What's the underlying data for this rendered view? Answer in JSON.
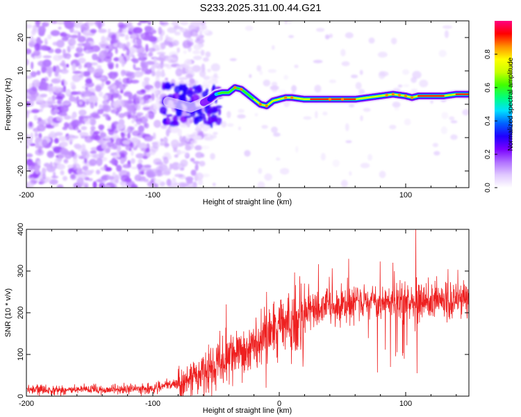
{
  "title": "S233.2025.311.00.44.G21",
  "chart_data": [
    {
      "type": "heatmap",
      "name": "spectrogram",
      "xlabel": "Height of straight line (km)",
      "ylabel": "Frequency (Hz)",
      "xlim": [
        -200,
        150
      ],
      "ylim": [
        -25,
        25
      ],
      "xticks": [
        -200,
        -100,
        0,
        100
      ],
      "yticks": [
        -20,
        -10,
        0,
        10,
        20
      ],
      "xtick_labels": [
        "-200",
        "-100",
        "0",
        "100"
      ],
      "ytick_labels": [
        "-20",
        "-10",
        "0",
        "10",
        "20"
      ],
      "colorbar": {
        "label": "Normalized spectral amplitude",
        "range": [
          0,
          1
        ],
        "ticks": [
          0,
          0.2,
          0.4,
          0.6,
          0.8
        ],
        "tick_labels": [
          "0.0",
          "0.2",
          "0.4",
          "0.6",
          "0.8"
        ],
        "colors": [
          "#ffffff",
          "#e0c8ff",
          "#b070ff",
          "#7a00ff",
          "#2000ff",
          "#0060ff",
          "#00e0ff",
          "#00ff80",
          "#40ff00",
          "#c8ff00",
          "#ffff00",
          "#ff9000",
          "#ff0000",
          "#ff0080"
        ]
      },
      "ridge": {
        "description_free": true,
        "x": [
          -90,
          -80,
          -70,
          -60,
          -55,
          -50,
          -45,
          -40,
          -35,
          -30,
          -25,
          -20,
          -15,
          -10,
          -5,
          0,
          5,
          10,
          20,
          30,
          40,
          50,
          60,
          70,
          80,
          90,
          100,
          105,
          110,
          120,
          130,
          140,
          150
        ],
        "y": [
          1,
          0,
          -1,
          0.5,
          1.5,
          3,
          3.5,
          3.5,
          5,
          4.5,
          3,
          1.5,
          0,
          -0.5,
          1,
          1.5,
          2,
          2,
          1.5,
          1.5,
          1.5,
          1.5,
          1.5,
          2,
          2.5,
          3,
          2.5,
          2,
          2.5,
          2.5,
          2.5,
          3,
          3
        ]
      }
    },
    {
      "type": "line",
      "name": "snr",
      "xlabel": "Height of straight line (km)",
      "ylabel": "SNR (10 * v/v)",
      "xlim": [
        -200,
        150
      ],
      "ylim": [
        0,
        400
      ],
      "xticks": [
        -200,
        -100,
        0,
        100
      ],
      "yticks": [
        0,
        100,
        200,
        300,
        400
      ],
      "xtick_labels": [
        "-200",
        "-100",
        "0",
        "100"
      ],
      "ytick_labels": [
        "0",
        "100",
        "200",
        "300",
        "400"
      ],
      "color": "#ee2020",
      "trend": {
        "x": [
          -200,
          -150,
          -100,
          -90,
          -80,
          -70,
          -60,
          -50,
          -40,
          -30,
          -20,
          -10,
          0,
          10,
          20,
          30,
          40,
          50,
          60,
          70,
          80,
          90,
          100,
          110,
          120,
          130,
          140,
          150
        ],
        "y": [
          15,
          15,
          18,
          25,
          30,
          40,
          55,
          70,
          85,
          100,
          120,
          140,
          160,
          180,
          200,
          210,
          215,
          220,
          225,
          225,
          225,
          225,
          225,
          225,
          225,
          225,
          230,
          230
        ]
      },
      "spikes": [
        {
          "x": -42,
          "y": 220
        },
        {
          "x": -10,
          "y": 250
        },
        {
          "x": 90,
          "y": 320
        },
        {
          "x": 108,
          "y": 400
        },
        {
          "x": 109,
          "y": 55
        },
        {
          "x": 88,
          "y": 70
        }
      ]
    }
  ]
}
